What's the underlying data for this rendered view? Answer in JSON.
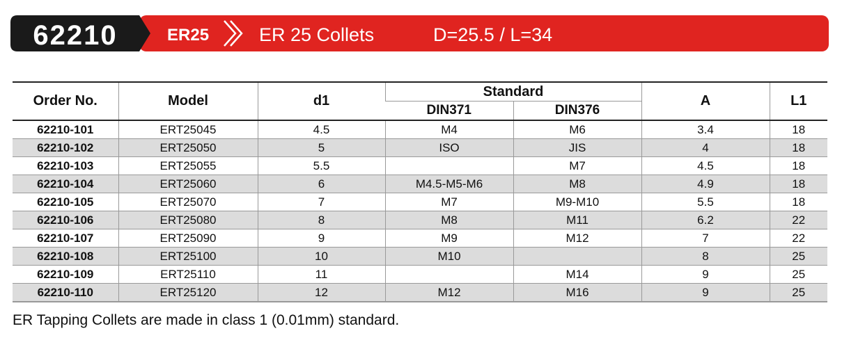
{
  "header": {
    "code": "62210",
    "series": "ER25",
    "title": "ER 25 Collets",
    "dims": "D=25.5 / L=34"
  },
  "table": {
    "columns": {
      "order_no": "Order No.",
      "model": "Model",
      "d1": "d1",
      "standard": "Standard",
      "din371": "DIN371",
      "din376": "DIN376",
      "a": "A",
      "l1": "L1"
    },
    "rows": [
      [
        "62210-101",
        "ERT25045",
        "4.5",
        "M4",
        "M6",
        "3.4",
        "18"
      ],
      [
        "62210-102",
        "ERT25050",
        "5",
        "ISO",
        "JIS",
        "4",
        "18"
      ],
      [
        "62210-103",
        "ERT25055",
        "5.5",
        null,
        "M7",
        "4.5",
        "18"
      ],
      [
        "62210-104",
        "ERT25060",
        "6",
        "M4.5-M5-M6",
        "M8",
        "4.9",
        "18"
      ],
      [
        "62210-105",
        "ERT25070",
        "7",
        "M7",
        "M9-M10",
        "5.5",
        "18"
      ],
      [
        "62210-106",
        "ERT25080",
        "8",
        "M8",
        "M11",
        "6.2",
        "22"
      ],
      [
        "62210-107",
        "ERT25090",
        "9",
        "M9",
        "M12",
        "7",
        "22"
      ],
      [
        "62210-108",
        "ERT25100",
        "10",
        "M10",
        null,
        "8",
        "25"
      ],
      [
        "62210-109",
        "ERT25110",
        "11",
        null,
        "M14",
        "9",
        "25"
      ],
      [
        "62210-110",
        "ERT25120",
        "12",
        "M12",
        "M16",
        "9",
        "25"
      ]
    ]
  },
  "footnote": "ER Tapping Collets are made in class 1 (0.01mm) standard."
}
